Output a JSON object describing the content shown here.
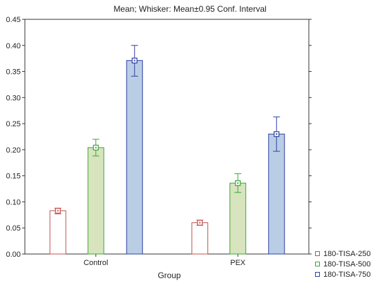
{
  "chart_data": {
    "type": "bar",
    "title": "Mean; Whisker: Mean±0.95 Conf. Interval",
    "xlabel": "Group",
    "ylabel": "",
    "categories": [
      "Control",
      "PEX"
    ],
    "ylim": [
      0,
      0.45
    ],
    "yticks": [
      "0.00",
      "0.05",
      "0.10",
      "0.15",
      "0.20",
      "0.25",
      "0.30",
      "0.35",
      "0.40",
      "0.45"
    ],
    "grid": false,
    "legend_position": "bottom-right",
    "series": [
      {
        "name": "180-TISA-250",
        "values": [
          0.083,
          0.06
        ],
        "ci_low": [
          0.077,
          0.055
        ],
        "ci_high": [
          0.088,
          0.065
        ],
        "fill": "#ffffff",
        "stroke": "#c0504d"
      },
      {
        "name": "180-TISA-500",
        "values": [
          0.204,
          0.136
        ],
        "ci_low": [
          0.188,
          0.118
        ],
        "ci_high": [
          0.22,
          0.154
        ],
        "fill": "#d7e4bd",
        "stroke": "#3aa63a"
      },
      {
        "name": "180-TISA-750",
        "values": [
          0.371,
          0.23
        ],
        "ci_low": [
          0.341,
          0.197
        ],
        "ci_high": [
          0.4,
          0.263
        ],
        "fill": "#b9cde5",
        "stroke": "#2f3fa0"
      }
    ]
  }
}
